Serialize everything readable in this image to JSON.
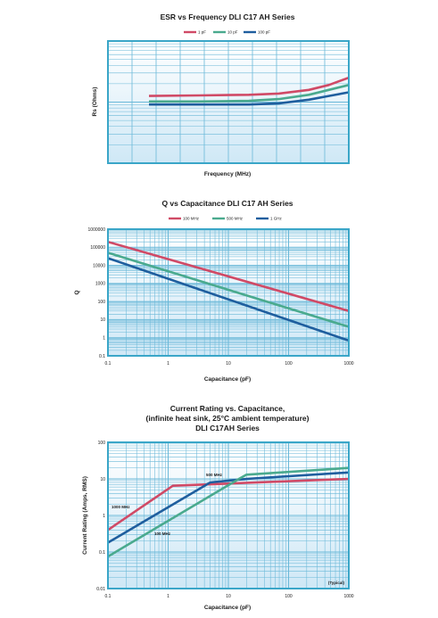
{
  "colors": {
    "frame": "#3aa6c8",
    "grid": "#6ab8d8",
    "fill_top": "#ffffff",
    "fill_bottom": "#cfe8f6"
  },
  "chart_data": [
    {
      "type": "line",
      "title": "ESR vs Frequency DLI C17 AH Series",
      "xlabel": "Frequency (MHz)",
      "ylabel": "Rs (Ohms)",
      "grid": true,
      "legend_position": "top-center",
      "x": [
        0,
        0.25,
        0.5,
        0.65,
        0.8,
        0.9,
        1.0
      ],
      "ylim": [
        0,
        1
      ],
      "series": [
        {
          "name": "1 pF",
          "color": "#d04a66",
          "values": [
            0.55,
            0.555,
            0.56,
            0.57,
            0.6,
            0.64,
            0.7
          ]
        },
        {
          "name": "10 pF",
          "color": "#4aaa8e",
          "values": [
            0.505,
            0.505,
            0.51,
            0.525,
            0.56,
            0.6,
            0.64
          ]
        },
        {
          "name": "100 pF",
          "color": "#1f5e9e",
          "values": [
            0.48,
            0.48,
            0.48,
            0.49,
            0.52,
            0.55,
            0.58
          ]
        }
      ]
    },
    {
      "type": "line",
      "title": "Q vs Capacitance DLI C17 AH Series",
      "xlabel": "Capacitance (pF)",
      "ylabel": "Q",
      "x_scale": "log",
      "y_scale": "log",
      "xlim": [
        0.1,
        1000
      ],
      "ylim": [
        0.1,
        1000000
      ],
      "x_ticks": [
        "0.1",
        "1",
        "10",
        "100",
        "1000"
      ],
      "y_ticks": [
        "0.1",
        "1",
        "10",
        "100",
        "1000",
        "10000",
        "100000",
        "1000000"
      ],
      "grid": true,
      "legend_position": "top-center",
      "series": [
        {
          "name": "100 MHz",
          "color": "#d04a66",
          "x": [
            0.1,
            1000
          ],
          "values": [
            200000,
            30
          ]
        },
        {
          "name": "500 MHz",
          "color": "#4aaa8e",
          "x": [
            0.1,
            1000
          ],
          "values": [
            50000,
            4
          ]
        },
        {
          "name": "1 GHz",
          "color": "#1f5e9e",
          "x": [
            0.1,
            1000
          ],
          "values": [
            25000,
            0.7
          ]
        }
      ]
    },
    {
      "type": "line",
      "title_lines": [
        "Current Rating vs. Capacitance,",
        "(infinite heat sink, 25°C ambient temperature)",
        "DLI C17AH Series"
      ],
      "xlabel": "Capacitance (pF)",
      "ylabel": "Current Rating (Amps, RMS)",
      "x_scale": "log",
      "y_scale": "log",
      "xlim": [
        0.1,
        1000
      ],
      "ylim": [
        0.01,
        100
      ],
      "x_ticks": [
        "0.1",
        "1",
        "10",
        "100",
        "1000"
      ],
      "y_ticks": [
        "0.01",
        "0.1",
        "1",
        "10",
        "100"
      ],
      "grid": true,
      "annotations": [
        "1000 MHz",
        "500 MHz",
        "100 MHz",
        "(Typical)"
      ],
      "series": [
        {
          "name": "1000 MHz",
          "color": "#d04a66",
          "x": [
            0.1,
            1.2,
            1000
          ],
          "values": [
            0.4,
            6.5,
            10
          ]
        },
        {
          "name": "500 MHz",
          "color": "#1f5e9e",
          "x": [
            0.1,
            5,
            20,
            1000
          ],
          "values": [
            0.18,
            8,
            10,
            15
          ]
        },
        {
          "name": "100 MHz",
          "color": "#4aaa8e",
          "x": [
            0.1,
            15,
            20,
            1000
          ],
          "values": [
            0.075,
            10,
            13,
            20
          ]
        }
      ]
    }
  ]
}
